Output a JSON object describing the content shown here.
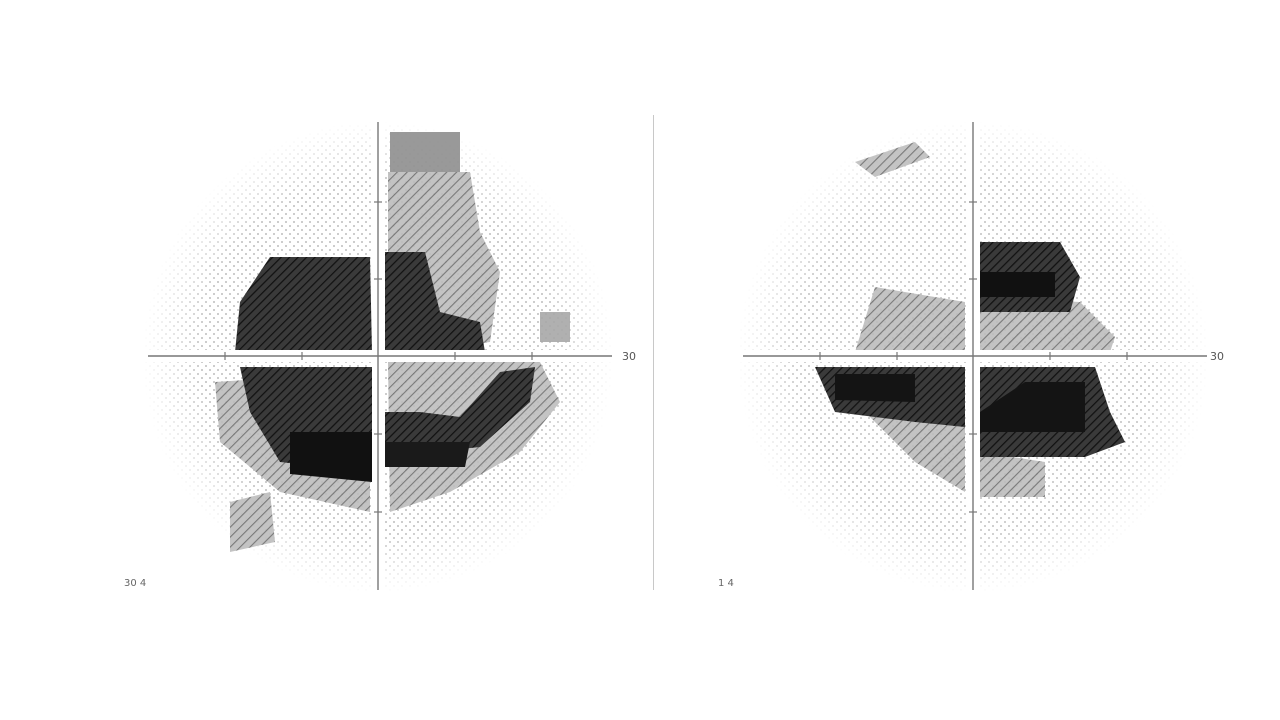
{
  "figure": {
    "description_type": "visual-field-grayscale-plot",
    "panels": [
      {
        "id": "left",
        "axis_label_right": "30",
        "corner_label": "30 4",
        "colors": {
          "dark": "#1c1c1c",
          "mid": "#5a5a5a",
          "light": "#9a9a9a",
          "faint": "#d9d9d9"
        }
      },
      {
        "id": "right",
        "axis_label_right": "30",
        "corner_label": "1 4",
        "colors": {
          "dark": "#1c1c1c",
          "mid": "#5a5a5a",
          "light": "#9a9a9a",
          "faint": "#d9d9d9"
        }
      }
    ]
  }
}
